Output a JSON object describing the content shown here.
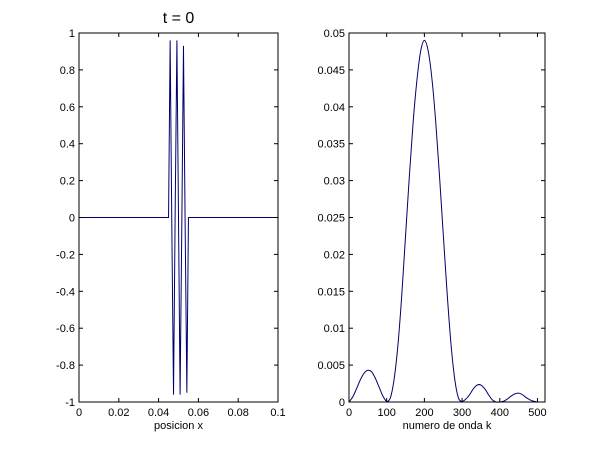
{
  "colors": {
    "background": "#ffffff",
    "axes": "#000000",
    "line": "#00006e"
  },
  "chart_data": [
    {
      "type": "line",
      "title": "t = 0",
      "xlabel": "posicion x",
      "ylabel": "",
      "xlim": [
        0,
        0.1
      ],
      "ylim": [
        -1,
        1
      ],
      "xticks": [
        0,
        0.02,
        0.04,
        0.06,
        0.08,
        0.1
      ],
      "xtick_labels": [
        "0",
        "0.02",
        "0.04",
        "0.06",
        "0.08",
        "0.1"
      ],
      "yticks": [
        -1,
        -0.8,
        -0.6,
        -0.4,
        -0.2,
        0,
        0.2,
        0.4,
        0.6,
        0.8,
        1
      ],
      "ytick_labels": [
        "-1",
        "-0.8",
        "-0.6",
        "-0.4",
        "-0.2",
        "0",
        "0.2",
        "0.4",
        "0.6",
        "0.8",
        "1"
      ],
      "grid": false,
      "series": [
        {
          "x": [
            0,
            0.045,
            0.0458,
            0.0466,
            0.0475,
            0.0483,
            0.0492,
            0.05,
            0.0508,
            0.0517,
            0.0525,
            0.0533,
            0.0542,
            0.055,
            0.1
          ],
          "y": [
            0,
            0,
            0.96,
            0.0,
            -0.96,
            0.0,
            0.96,
            0.0,
            -0.96,
            0.0,
            0.93,
            0.0,
            -0.95,
            0,
            0
          ]
        }
      ]
    },
    {
      "type": "line",
      "title": "",
      "xlabel": "numero de onda k",
      "ylabel": "",
      "xlim": [
        0,
        520
      ],
      "ylim": [
        0,
        0.05
      ],
      "xticks": [
        0,
        100,
        200,
        300,
        400,
        500
      ],
      "xtick_labels": [
        "0",
        "100",
        "200",
        "300",
        "400",
        "500"
      ],
      "yticks": [
        0,
        0.005,
        0.01,
        0.015,
        0.02,
        0.025,
        0.03,
        0.035,
        0.04,
        0.045,
        0.05
      ],
      "ytick_labels": [
        "0",
        "0.005",
        "0.01",
        "0.015",
        "0.02",
        "0.025",
        "0.03",
        "0.035",
        "0.04",
        "0.045",
        "0.05"
      ],
      "grid": false,
      "series": [
        {
          "x": [
            0,
            10,
            20,
            30,
            40,
            50,
            60,
            70,
            80,
            90,
            100,
            110,
            120,
            130,
            140,
            150,
            160,
            170,
            180,
            190,
            200,
            210,
            220,
            230,
            240,
            250,
            260,
            270,
            280,
            290,
            300,
            310,
            320,
            330,
            340,
            350,
            360,
            370,
            380,
            390,
            400,
            410,
            420,
            430,
            440,
            450,
            460,
            470,
            480,
            490,
            500
          ],
          "y": [
            0,
            0.0007,
            0.0018,
            0.003,
            0.0039,
            0.0043,
            0.0041,
            0.0032,
            0.002,
            0.0008,
            0.0001,
            0.0006,
            0.0032,
            0.0078,
            0.0145,
            0.0225,
            0.0305,
            0.0378,
            0.0435,
            0.0475,
            0.049,
            0.0476,
            0.0438,
            0.038,
            0.0307,
            0.0228,
            0.015,
            0.0082,
            0.0033,
            0.0006,
            0.0001,
            0.0004,
            0.001,
            0.0018,
            0.0023,
            0.0023,
            0.0018,
            0.001,
            0.0003,
            0.0,
            0.0,
            0.0001,
            0.0004,
            0.0008,
            0.0011,
            0.0012,
            0.001,
            0.0006,
            0.0003,
            0.0001,
            0.0
          ]
        }
      ]
    }
  ]
}
